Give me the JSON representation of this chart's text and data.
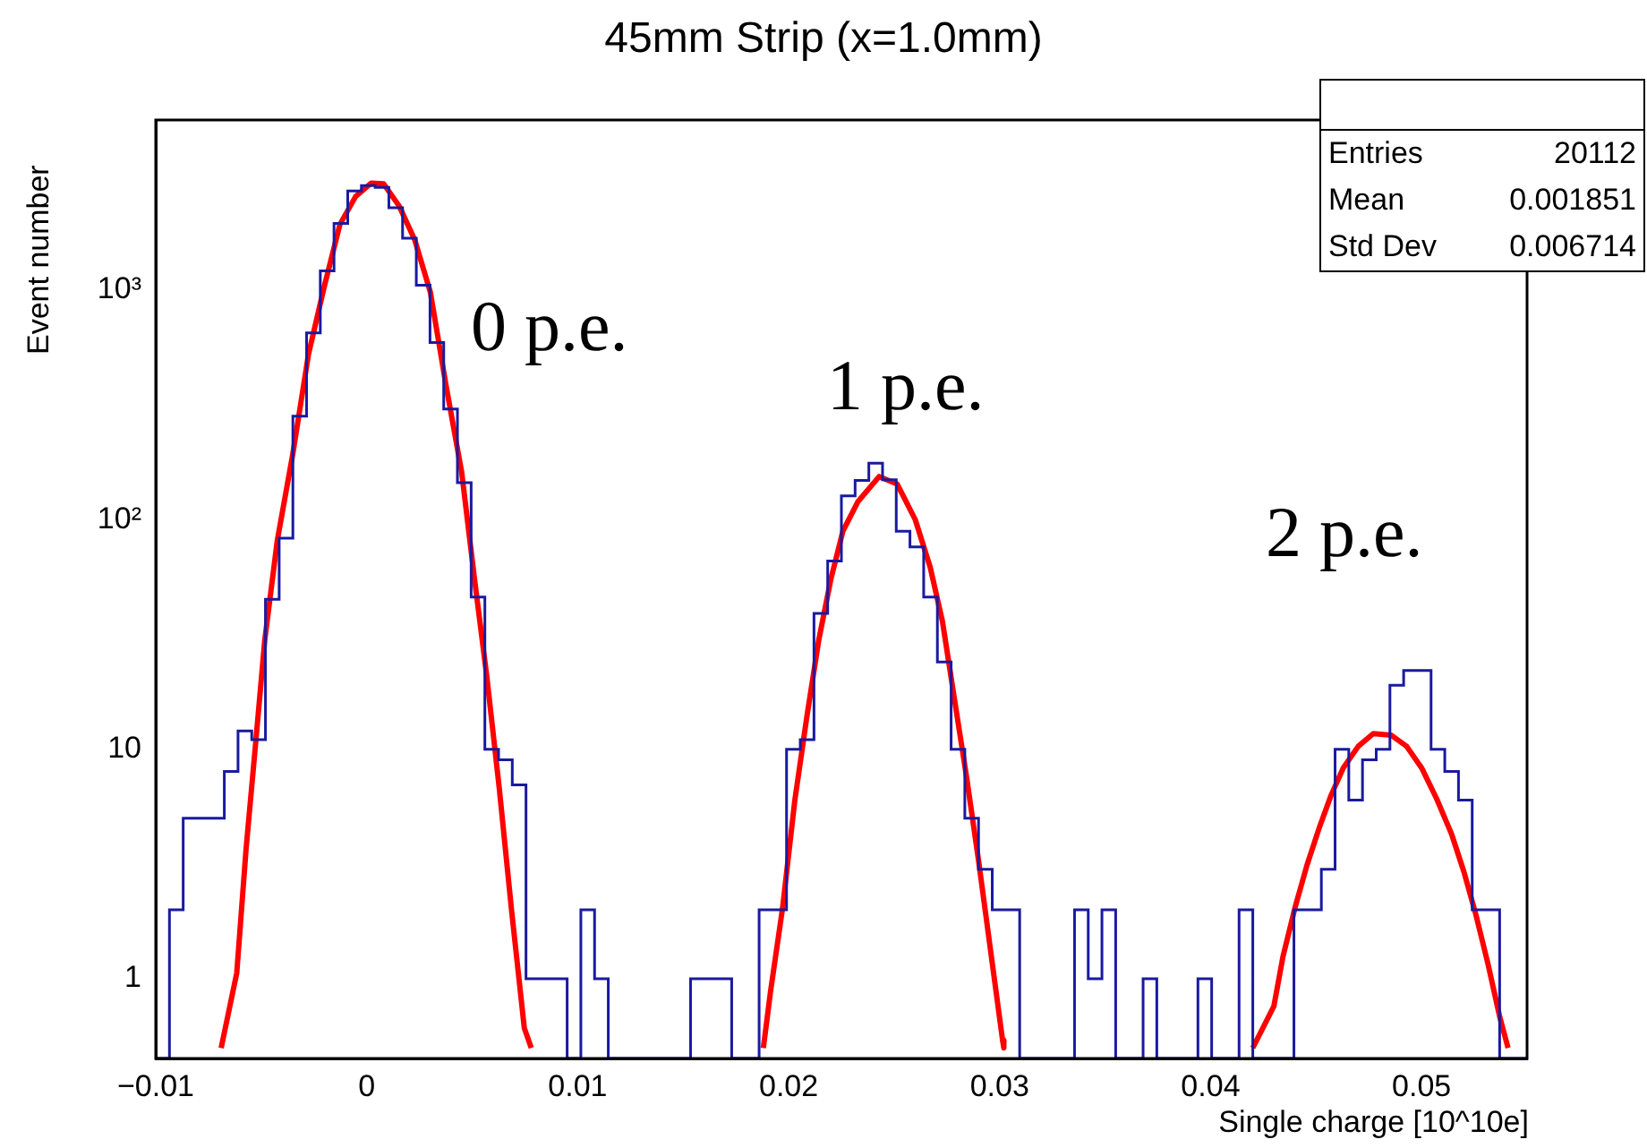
{
  "chart_data": {
    "type": "histogram",
    "title": "45mm Strip (x=1.0mm)",
    "xlabel": "Single charge [10^10e]",
    "ylabel": "Event number",
    "color": "#1a1aa0",
    "bins": [
      -0.01,
      -0.00935,
      -0.0087,
      -0.00805,
      -0.0074,
      -0.00675,
      -0.0061,
      -0.00545,
      -0.0048,
      -0.00415,
      -0.0035,
      -0.00285,
      -0.0022,
      -0.00155,
      -0.0009,
      -0.00025,
      0.0004,
      0.00105,
      0.0017,
      0.00235,
      0.003,
      0.00365,
      0.0043,
      0.00495,
      0.0056,
      0.00625,
      0.0069,
      0.00755,
      0.0082,
      0.00885,
      0.0095,
      0.01015,
      0.0108,
      0.01145,
      0.0121,
      0.01275,
      0.0134,
      0.01405,
      0.0147,
      0.01535,
      0.016,
      0.01665,
      0.0173,
      0.01795,
      0.0186,
      0.01925,
      0.0199,
      0.02055,
      0.0212,
      0.02185,
      0.0225,
      0.02315,
      0.0238,
      0.02445,
      0.0251,
      0.02575,
      0.0264,
      0.02705,
      0.0277,
      0.02835,
      0.029,
      0.02965,
      0.0303,
      0.03095,
      0.0316,
      0.03225,
      0.0329,
      0.03355,
      0.0342,
      0.03485,
      0.0355,
      0.03615,
      0.0368,
      0.03745,
      0.0381,
      0.03875,
      0.0394,
      0.04005,
      0.0407,
      0.04135,
      0.042,
      0.04265,
      0.0433,
      0.04395,
      0.0446,
      0.04525,
      0.0459,
      0.04655,
      0.0472,
      0.04785,
      0.0485,
      0.04915,
      0.0498,
      0.05045,
      0.0511,
      0.05175,
      0.0524,
      0.05305,
      0.0537,
      0.05435,
      0.055
    ],
    "values": [
      null,
      2,
      5,
      5,
      5,
      8,
      12,
      11,
      45,
      83,
      282,
      650,
      1210,
      1950,
      2700,
      2850,
      2800,
      2280,
      1680,
      1050,
      590,
      303,
      145,
      46,
      10,
      9,
      7,
      1,
      1,
      1,
      null,
      2,
      1,
      null,
      null,
      null,
      null,
      null,
      null,
      1,
      1,
      1,
      null,
      null,
      2,
      2,
      10,
      11,
      39,
      66,
      127,
      148,
      176,
      149,
      89,
      76,
      46,
      24,
      10,
      5,
      3,
      2,
      2,
      null,
      null,
      null,
      null,
      2,
      1,
      2,
      null,
      null,
      1,
      null,
      null,
      null,
      1,
      null,
      null,
      2,
      null,
      null,
      null,
      2,
      2,
      3,
      10,
      6,
      9,
      10,
      19,
      22,
      22,
      10,
      8,
      6,
      2,
      2,
      null,
      null
    ],
    "series": [
      {
        "type": "line",
        "color": "#ff0000",
        "x": [
          -0.0069,
          -0.00616,
          -0.00572,
          -0.00527,
          -0.00483,
          -0.00424,
          -0.0035,
          -0.00276,
          -0.00201,
          -0.00127,
          -0.00053,
          0.00021,
          0.0008,
          0.00154,
          0.00228,
          0.00302,
          0.00376,
          0.0045,
          0.0051,
          0.00569,
          0.00628,
          0.00687,
          0.00747,
          0.0078
        ],
        "values": [
          0.5,
          1.06,
          3.66,
          10.5,
          30,
          81,
          194,
          525,
          1037,
          1930,
          2550,
          2920,
          2900,
          2320,
          1650,
          975,
          384,
          161,
          56,
          20.8,
          6.8,
          1.97,
          0.61,
          0.5
        ]
      },
      {
        "type": "line",
        "color": "#ff0000",
        "x": [
          0.0188,
          0.01914,
          0.01971,
          0.02029,
          0.02086,
          0.02143,
          0.022,
          0.02257,
          0.02329,
          0.02429,
          0.02514,
          0.026,
          0.02671,
          0.02729,
          0.02786,
          0.02843,
          0.029,
          0.02957,
          0.03014,
          0.0302
        ],
        "values": [
          0.5,
          0.88,
          2.03,
          5.97,
          13.8,
          30,
          55,
          89,
          120,
          154,
          143,
          100,
          62,
          36,
          16.5,
          7.6,
          3.28,
          1.33,
          0.54,
          0.5
        ]
      },
      {
        "type": "line",
        "color": "#ff0000",
        "x": [
          0.042,
          0.043,
          0.04343,
          0.044,
          0.04457,
          0.04514,
          0.04571,
          0.04629,
          0.047,
          0.04771,
          0.04857,
          0.04929,
          0.05,
          0.05071,
          0.05143,
          0.052,
          0.05257,
          0.05314,
          0.05371,
          0.0541
        ],
        "values": [
          0.5,
          0.76,
          1.25,
          2.04,
          3.13,
          4.52,
          6.3,
          8.3,
          10.3,
          11.7,
          11.5,
          10.3,
          8.3,
          6.1,
          4.25,
          2.94,
          1.91,
          1.17,
          0.68,
          0.5
        ]
      }
    ],
    "xlim": [
      -0.01,
      0.055
    ],
    "xticks": [
      {
        "value": -0.01,
        "label": "−0.01"
      },
      0,
      0.01,
      0.02,
      0.03,
      0.04,
      0.05
    ],
    "ylim": [
      0.45,
      5500
    ],
    "yticks": [
      1,
      10,
      {
        "value": 100,
        "label": "10²"
      },
      {
        "value": 1000,
        "label": "10³"
      }
    ],
    "log": "y",
    "grid": false,
    "legend": false,
    "annotations": [
      "0 p.e.",
      "1 p.e.",
      "2 p.e.",
      "Entries 20112",
      "Mean 0.001851",
      "Std Dev 0.006714"
    ]
  }
}
